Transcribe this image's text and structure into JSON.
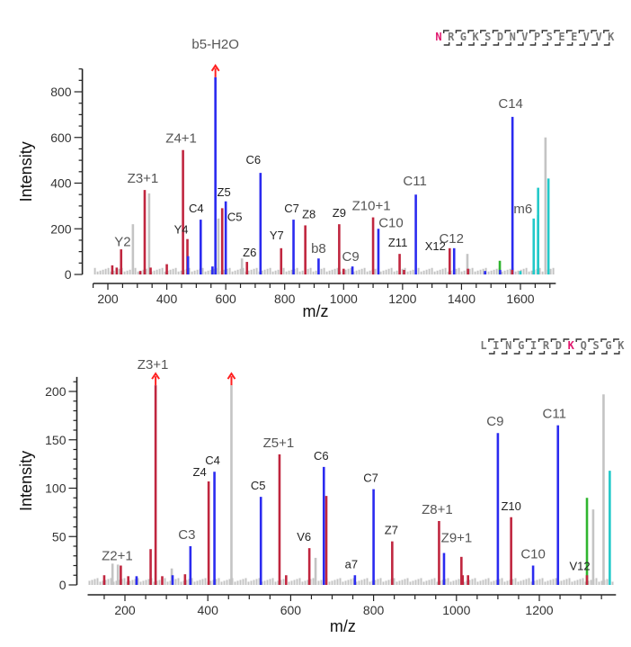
{
  "colors": {
    "c_ion": "#2b2bf0",
    "z_ion": "#c0263f",
    "noise": "#c4c4c4",
    "green": "#2fb52f",
    "cyan": "#22c9c9",
    "arrow": "#ff2020",
    "highlight": "#e0186e",
    "sequence": "#777777"
  },
  "chart_data": [
    {
      "type": "bar",
      "subtype": "mass-spectrum",
      "xlabel": "m/z",
      "ylabel": "Intensity",
      "xlim": [
        150,
        1720
      ],
      "ylim": [
        0,
        900
      ],
      "xticks": [
        200,
        400,
        600,
        800,
        1000,
        1200,
        1400,
        1600
      ],
      "yticks": [
        0,
        200,
        400,
        600,
        800
      ],
      "grid": false,
      "sequence": {
        "residues": [
          "N",
          "R",
          "G",
          "K",
          "S",
          "D",
          "N",
          "V",
          "P",
          "S",
          "E",
          "E",
          "V",
          "V",
          "K"
        ],
        "highlight_index": 0
      },
      "peaks": [
        {
          "mz": 215,
          "intensity": 40,
          "color": "z_ion"
        },
        {
          "mz": 230,
          "intensity": 30,
          "color": "z_ion"
        },
        {
          "mz": 245,
          "intensity": 110,
          "color": "z_ion"
        },
        {
          "mz": 285,
          "intensity": 220,
          "color": "noise"
        },
        {
          "mz": 325,
          "intensity": 370,
          "color": "z_ion",
          "label": "Z3+1"
        },
        {
          "mz": 340,
          "intensity": 355,
          "color": "noise"
        },
        {
          "mz": 310,
          "intensity": 15,
          "color": "z_ion"
        },
        {
          "mz": 345,
          "intensity": 30,
          "color": "z_ion"
        },
        {
          "mz": 400,
          "intensity": 45,
          "color": "z_ion"
        },
        {
          "mz": 455,
          "intensity": 545,
          "color": "z_ion",
          "label": "Z4+1"
        },
        {
          "mz": 470,
          "intensity": 155,
          "color": "z_ion",
          "label": "Y4"
        },
        {
          "mz": 472,
          "intensity": 80,
          "color": "c_ion"
        },
        {
          "mz": 515,
          "intensity": 240,
          "color": "c_ion",
          "label": "C4"
        },
        {
          "mz": 555,
          "intensity": 35,
          "color": "c_ion"
        },
        {
          "mz": 565,
          "intensity": 880,
          "color": "c_ion",
          "label": "b5-H2O",
          "truncated": true
        },
        {
          "mz": 575,
          "intensity": 245,
          "color": "noise"
        },
        {
          "mz": 588,
          "intensity": 290,
          "color": "z_ion",
          "label": "C5"
        },
        {
          "mz": 600,
          "intensity": 320,
          "color": "c_ion",
          "label": "Z5"
        },
        {
          "mz": 655,
          "intensity": 70,
          "color": "noise"
        },
        {
          "mz": 672,
          "intensity": 55,
          "color": "z_ion",
          "label": "Z6"
        },
        {
          "mz": 718,
          "intensity": 445,
          "color": "c_ion",
          "label": "C6"
        },
        {
          "mz": 788,
          "intensity": 115,
          "color": "z_ion",
          "label": "Y7"
        },
        {
          "mz": 830,
          "intensity": 240,
          "color": "c_ion",
          "label": "C7"
        },
        {
          "mz": 870,
          "intensity": 215,
          "color": "z_ion",
          "label": "Z8"
        },
        {
          "mz": 915,
          "intensity": 70,
          "color": "c_ion",
          "label": "b8"
        },
        {
          "mz": 985,
          "intensity": 220,
          "color": "z_ion",
          "label": "Z9"
        },
        {
          "mz": 1000,
          "intensity": 25,
          "color": "z_ion"
        },
        {
          "mz": 1030,
          "intensity": 35,
          "color": "c_ion",
          "label": "C9"
        },
        {
          "mz": 1100,
          "intensity": 250,
          "color": "z_ion",
          "label": "Z10+1"
        },
        {
          "mz": 1118,
          "intensity": 200,
          "color": "c_ion",
          "label": "C10"
        },
        {
          "mz": 1190,
          "intensity": 90,
          "color": "z_ion",
          "label": "Z11"
        },
        {
          "mz": 1205,
          "intensity": 20,
          "color": "z_ion"
        },
        {
          "mz": 1245,
          "intensity": 350,
          "color": "c_ion",
          "label": "C11"
        },
        {
          "mz": 1360,
          "intensity": 115,
          "color": "z_ion",
          "label": "X12"
        },
        {
          "mz": 1375,
          "intensity": 115,
          "color": "c_ion",
          "label": "C12"
        },
        {
          "mz": 1420,
          "intensity": 90,
          "color": "noise"
        },
        {
          "mz": 1422,
          "intensity": 25,
          "color": "z_ion"
        },
        {
          "mz": 1480,
          "intensity": 15,
          "color": "c_ion"
        },
        {
          "mz": 1530,
          "intensity": 60,
          "color": "green"
        },
        {
          "mz": 1531,
          "intensity": 20,
          "color": "c_ion"
        },
        {
          "mz": 1573,
          "intensity": 690,
          "color": "c_ion",
          "label": "C14"
        },
        {
          "mz": 1572,
          "intensity": 20,
          "color": "z_ion"
        },
        {
          "mz": 1645,
          "intensity": 245,
          "color": "cyan",
          "label": "m6"
        },
        {
          "mz": 1660,
          "intensity": 380,
          "color": "cyan"
        },
        {
          "mz": 1660,
          "intensity": 260,
          "color": "cyan"
        },
        {
          "mz": 1685,
          "intensity": 600,
          "color": "noise"
        },
        {
          "mz": 1695,
          "intensity": 420,
          "color": "cyan"
        },
        {
          "mz": 1600,
          "intensity": 15,
          "color": "cyan"
        }
      ]
    },
    {
      "type": "bar",
      "subtype": "mass-spectrum",
      "xlabel": "m/z",
      "ylabel": "Intensity",
      "xlim": [
        110,
        1385
      ],
      "ylim": [
        0,
        215
      ],
      "xticks": [
        200,
        400,
        600,
        800,
        1000,
        1200
      ],
      "yticks": [
        0,
        50,
        100,
        150,
        200
      ],
      "grid": false,
      "sequence": {
        "residues": [
          "L",
          "I",
          "N",
          "G",
          "I",
          "R",
          "D",
          "K",
          "Q",
          "S",
          "G",
          "K"
        ],
        "highlight_index": 7
      },
      "peaks": [
        {
          "mz": 150,
          "intensity": 10,
          "color": "z_ion"
        },
        {
          "mz": 170,
          "intensity": 22,
          "color": "noise"
        },
        {
          "mz": 183,
          "intensity": 21,
          "color": "noise"
        },
        {
          "mz": 190,
          "intensity": 20,
          "color": "z_ion",
          "label": "Z2+1"
        },
        {
          "mz": 208,
          "intensity": 9,
          "color": "z_ion"
        },
        {
          "mz": 228,
          "intensity": 9,
          "color": "c_ion"
        },
        {
          "mz": 262,
          "intensity": 37,
          "color": "z_ion"
        },
        {
          "mz": 274,
          "intensity": 210,
          "color": "z_ion",
          "label": "Z3+1",
          "truncated": true
        },
        {
          "mz": 290,
          "intensity": 9,
          "color": "z_ion"
        },
        {
          "mz": 313,
          "intensity": 17,
          "color": "noise"
        },
        {
          "mz": 315,
          "intensity": 10,
          "color": "c_ion"
        },
        {
          "mz": 345,
          "intensity": 11,
          "color": "z_ion"
        },
        {
          "mz": 358,
          "intensity": 40,
          "color": "c_ion",
          "label": "C3"
        },
        {
          "mz": 402,
          "intensity": 107,
          "color": "z_ion",
          "label": "Z4"
        },
        {
          "mz": 416,
          "intensity": 117,
          "color": "c_ion",
          "label": "C4"
        },
        {
          "mz": 457,
          "intensity": 210,
          "color": "noise",
          "truncated": true
        },
        {
          "mz": 528,
          "intensity": 91,
          "color": "c_ion",
          "label": "C5"
        },
        {
          "mz": 573,
          "intensity": 135,
          "color": "z_ion",
          "label": "Z5+1"
        },
        {
          "mz": 589,
          "intensity": 10,
          "color": "z_ion"
        },
        {
          "mz": 645,
          "intensity": 38,
          "color": "z_ion",
          "label": "V6"
        },
        {
          "mz": 660,
          "intensity": 28,
          "color": "noise"
        },
        {
          "mz": 680,
          "intensity": 122,
          "color": "c_ion",
          "label": "C6"
        },
        {
          "mz": 686,
          "intensity": 92,
          "color": "z_ion"
        },
        {
          "mz": 755,
          "intensity": 10,
          "color": "c_ion",
          "label": "a7"
        },
        {
          "mz": 800,
          "intensity": 99,
          "color": "c_ion",
          "label": "C7"
        },
        {
          "mz": 845,
          "intensity": 45,
          "color": "z_ion",
          "label": "Z7"
        },
        {
          "mz": 958,
          "intensity": 66,
          "color": "z_ion",
          "label": "Z8+1"
        },
        {
          "mz": 970,
          "intensity": 33,
          "color": "c_ion",
          "label": "Z9+1"
        },
        {
          "mz": 1012,
          "intensity": 29,
          "color": "z_ion"
        },
        {
          "mz": 1015,
          "intensity": 10,
          "color": "z_ion"
        },
        {
          "mz": 1028,
          "intensity": 10,
          "color": "z_ion"
        },
        {
          "mz": 1100,
          "intensity": 157,
          "color": "c_ion",
          "label": "C9"
        },
        {
          "mz": 1132,
          "intensity": 70,
          "color": "z_ion",
          "label": "Z10"
        },
        {
          "mz": 1185,
          "intensity": 20,
          "color": "c_ion",
          "label": "C10"
        },
        {
          "mz": 1245,
          "intensity": 165,
          "color": "c_ion",
          "label": "C11"
        },
        {
          "mz": 1315,
          "intensity": 90,
          "color": "green"
        },
        {
          "mz": 1315,
          "intensity": 10,
          "color": "z_ion",
          "label": "V12"
        },
        {
          "mz": 1330,
          "intensity": 78,
          "color": "noise"
        },
        {
          "mz": 1355,
          "intensity": 197,
          "color": "noise"
        },
        {
          "mz": 1370,
          "intensity": 118,
          "color": "cyan"
        }
      ]
    }
  ]
}
